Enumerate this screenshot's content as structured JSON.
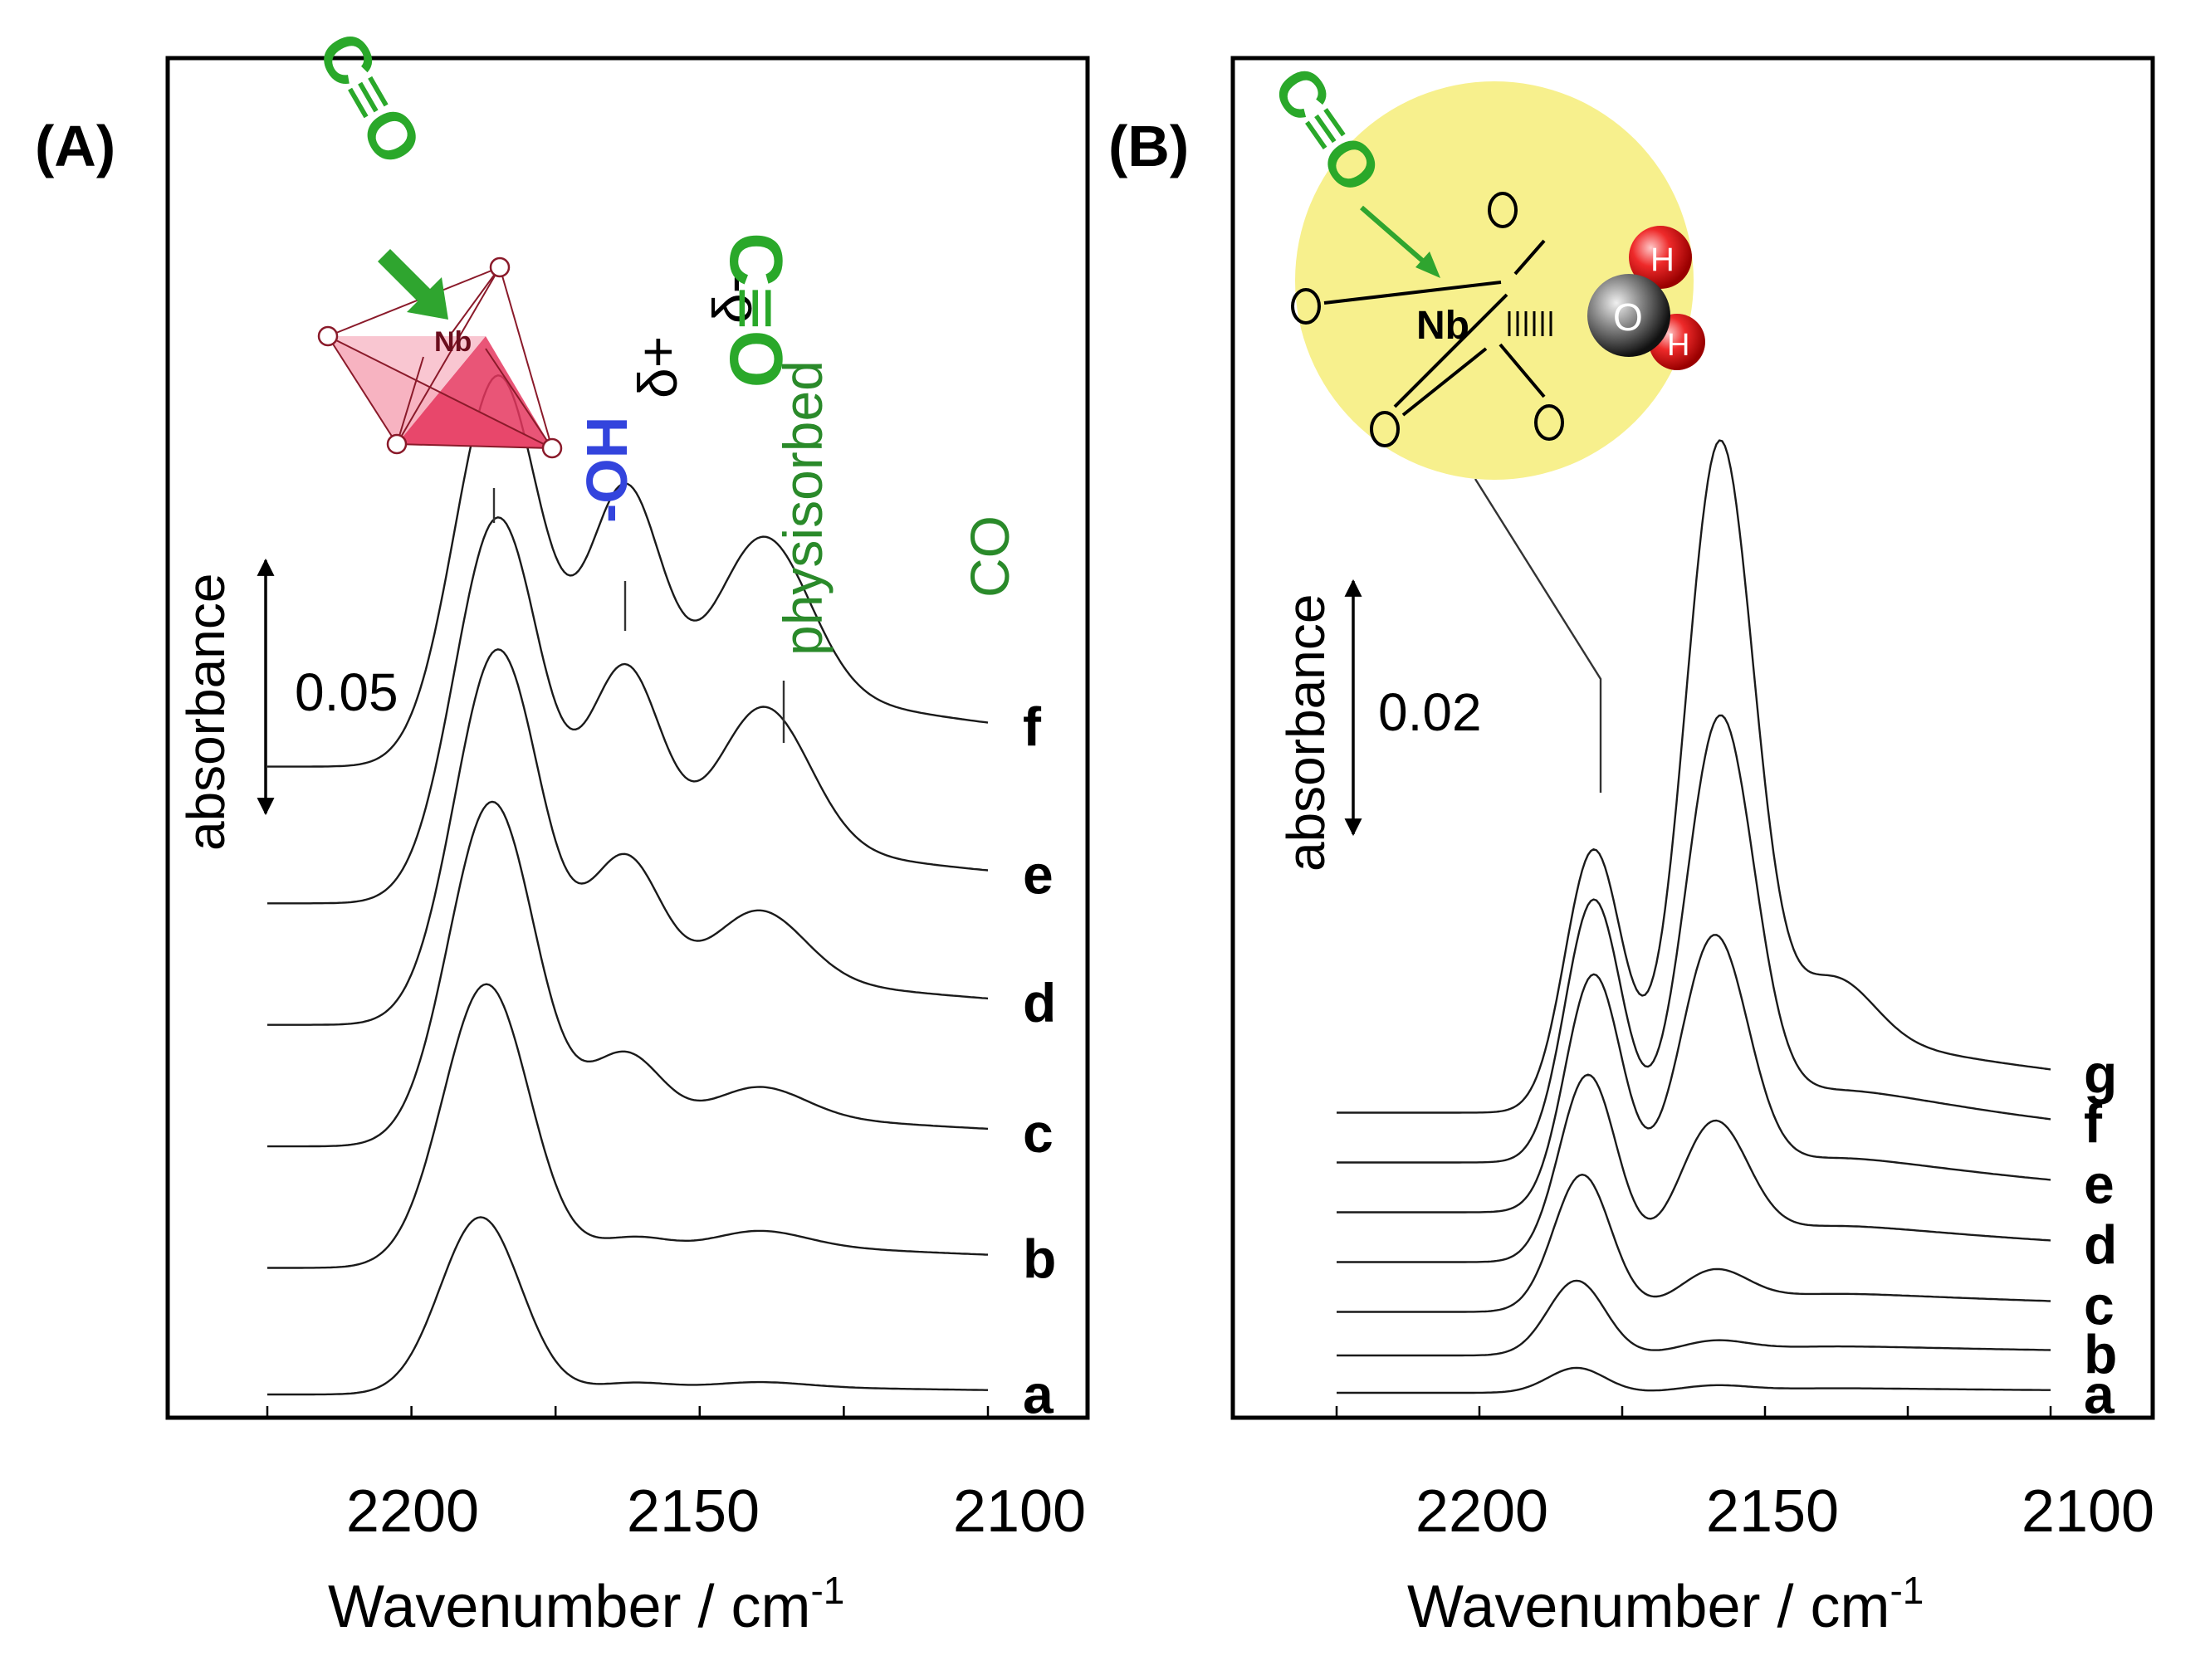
{
  "chart_data": [
    {
      "type": "line",
      "panel_label": "(A)",
      "xlabel": "Wavenumber / cm",
      "xlabel_sup": "-1",
      "x_reversed": true,
      "xlim": [
        2225,
        2100
      ],
      "x_ticks": [
        2200,
        2150,
        2100
      ],
      "scale_bar": {
        "value": "0.05",
        "label": "absorbance"
      },
      "annotations": {
        "physisorbed": [
          "physisorbed",
          "CO"
        ],
        "oh": "-OH",
        "delta_plus": "δ+",
        "delta_minus": "δ-",
        "co_molecule": "C≡O",
        "nb": "Nb"
      },
      "series": [
        {
          "name": "a",
          "offset": 0,
          "baseline": 0,
          "peaks": [
            [
              2188,
              0.035,
              7
            ],
            [
              2162,
              0.002,
              7
            ],
            [
              2140,
              0.001,
              8
            ]
          ],
          "tail": 0.002
        },
        {
          "name": "b",
          "offset": 0.025,
          "baseline": 0,
          "peaks": [
            [
              2187,
              0.056,
              7.5
            ],
            [
              2162,
              0.005,
              7
            ],
            [
              2140,
              0.003,
              8
            ]
          ],
          "tail": 0.006
        },
        {
          "name": "c",
          "offset": 0.049,
          "baseline": 0,
          "peaks": [
            [
              2186,
              0.068,
              7.5
            ],
            [
              2163,
              0.017,
              6.5
            ],
            [
              2140,
              0.006,
              8
            ]
          ],
          "tail": 0.008
        },
        {
          "name": "d",
          "offset": 0.073,
          "baseline": 0,
          "peaks": [
            [
              2185,
              0.074,
              7.5
            ],
            [
              2163,
              0.031,
              6.5
            ],
            [
              2140,
              0.014,
              8
            ]
          ],
          "tail": 0.012
        },
        {
          "name": "e",
          "offset": 0.097,
          "baseline": 0,
          "peaks": [
            [
              2185,
              0.076,
              7.5
            ],
            [
              2163,
              0.044,
              6.5
            ],
            [
              2139,
              0.028,
              8
            ]
          ],
          "tail": 0.015
        },
        {
          "name": "f",
          "offset": 0.124,
          "baseline": 0,
          "peaks": [
            [
              2185,
              0.077,
              7.5
            ],
            [
              2163,
              0.052,
              6.5
            ],
            [
              2139,
              0.031,
              8
            ]
          ],
          "tail": 0.02
        }
      ]
    },
    {
      "type": "line",
      "panel_label": "(B)",
      "xlabel": "Wavenumber / cm",
      "xlabel_sup": "-1",
      "x_reversed": true,
      "xlim": [
        2225,
        2100
      ],
      "x_ticks": [
        2200,
        2150,
        2100
      ],
      "scale_bar": {
        "value": "0.02",
        "label": "absorbance"
      },
      "annotations": {
        "nb": "Nb",
        "co_molecule": "C≡O",
        "o": "O",
        "h": "H"
      },
      "series": [
        {
          "name": "a",
          "offset": 0,
          "peaks": [
            [
              2183,
              0.002,
              5
            ],
            [
              2159,
              0.0005,
              6
            ]
          ],
          "tail": 0.0005
        },
        {
          "name": "b",
          "offset": 0.003,
          "peaks": [
            [
              2183,
              0.006,
              5
            ],
            [
              2159,
              0.001,
              6
            ]
          ],
          "tail": 0.001
        },
        {
          "name": "c",
          "offset": 0.0065,
          "peaks": [
            [
              2182,
              0.011,
              5
            ],
            [
              2159,
              0.003,
              6
            ]
          ],
          "tail": 0.002
        },
        {
          "name": "d",
          "offset": 0.0105,
          "peaks": [
            [
              2181,
              0.015,
              5
            ],
            [
              2159,
              0.0105,
              6
            ]
          ],
          "tail": 0.004
        },
        {
          "name": "e",
          "offset": 0.0145,
          "peaks": [
            [
              2180,
              0.019,
              5
            ],
            [
              2159,
              0.021,
              6
            ]
          ],
          "tail": 0.006
        },
        {
          "name": "f",
          "offset": 0.0185,
          "peaks": [
            [
              2180,
              0.021,
              5
            ],
            [
              2158,
              0.034,
              6
            ]
          ],
          "tail": 0.008
        },
        {
          "name": "g",
          "offset": 0.0225,
          "peaks": [
            [
              2180,
              0.021,
              5
            ],
            [
              2158,
              0.052,
              6
            ],
            [
              2138,
              0.005,
              7
            ]
          ],
          "tail": 0.008
        }
      ]
    }
  ]
}
